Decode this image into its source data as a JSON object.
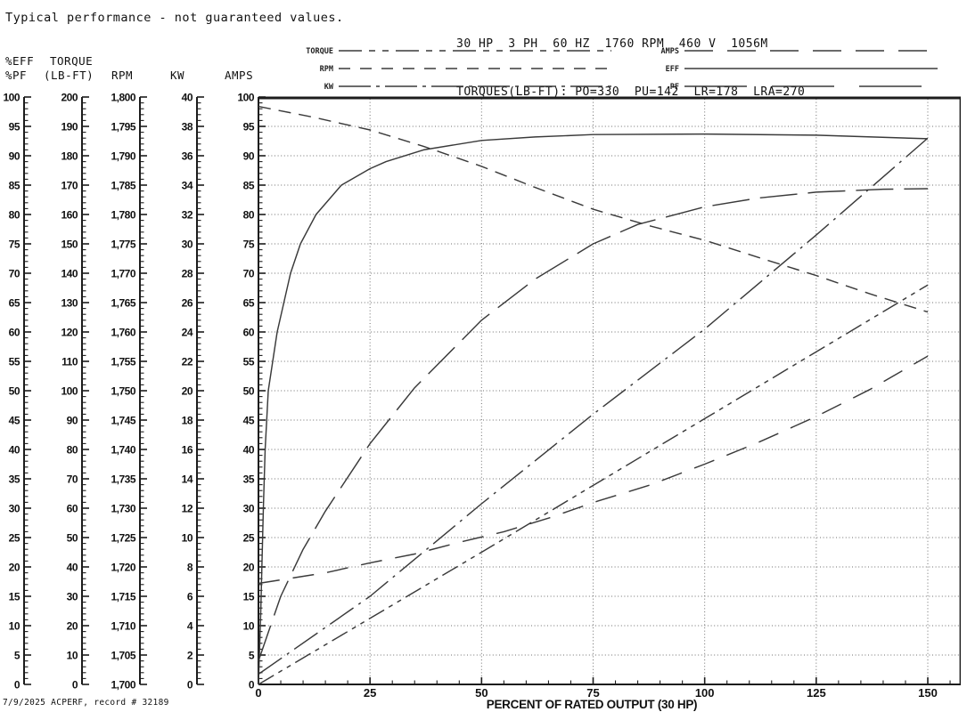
{
  "note": "Typical performance - not guaranteed values.",
  "header": {
    "line1": "30 HP  3 PH  60 HZ  1760 RPM  460 V  1056M",
    "line2": "TORQUES(LB-FT): PO=330  PU=142  LR=178  LRA=270"
  },
  "footer": "7/9/2025 ACPERF, record # 32189",
  "legend": {
    "left": [
      {
        "label": "TORQUE",
        "dash": "26 8 7 8 7 8"
      },
      {
        "label": "RPM",
        "dash": "13 11"
      },
      {
        "label": "KW",
        "dash": "36 6 4 6"
      }
    ],
    "right": [
      {
        "label": "AMPS",
        "dash": "32 16"
      },
      {
        "label": "EFF",
        "dash": ""
      },
      {
        "label": "PF",
        "dash": "70 28"
      }
    ]
  },
  "axes": {
    "y_axes": [
      {
        "id": "eff_pf",
        "header1": "%EFF",
        "header2": "%PF",
        "min": 0,
        "max": 100,
        "tick_labels": [
          "100",
          "95",
          "90",
          "85",
          "80",
          "75",
          "70",
          "65",
          "60",
          "55",
          "50",
          "45",
          "40",
          "35",
          "30",
          "25",
          "20",
          "15",
          "10",
          "5",
          "0"
        ]
      },
      {
        "id": "torque",
        "header1": "TORQUE",
        "header2": "(LB-FT)",
        "min": 0,
        "max": 200,
        "tick_labels": [
          "200",
          "190",
          "180",
          "170",
          "160",
          "150",
          "140",
          "130",
          "120",
          "110",
          "100",
          "90",
          "80",
          "70",
          "60",
          "50",
          "40",
          "30",
          "20",
          "10",
          "0"
        ]
      },
      {
        "id": "rpm",
        "header1": "",
        "header2": "RPM",
        "min": 1700,
        "max": 1800,
        "tick_labels": [
          "1,800",
          "1,795",
          "1,790",
          "1,785",
          "1,780",
          "1,775",
          "1,770",
          "1,765",
          "1,760",
          "1,755",
          "1,750",
          "1,745",
          "1,740",
          "1,735",
          "1,730",
          "1,725",
          "1,720",
          "1,715",
          "1,710",
          "1,705",
          "1,700"
        ]
      },
      {
        "id": "kw",
        "header1": "",
        "header2": "KW",
        "min": 0,
        "max": 40,
        "tick_labels": [
          "40",
          "38",
          "36",
          "34",
          "32",
          "30",
          "28",
          "26",
          "24",
          "22",
          "20",
          "18",
          "16",
          "14",
          "12",
          "10",
          "8",
          "6",
          "4",
          "2",
          "0"
        ]
      },
      {
        "id": "amps",
        "header1": "",
        "header2": "AMPS",
        "min": 0,
        "max": 100,
        "tick_labels": [
          "100",
          "95",
          "90",
          "85",
          "80",
          "75",
          "70",
          "65",
          "60",
          "55",
          "50",
          "45",
          "40",
          "35",
          "30",
          "25",
          "20",
          "15",
          "10",
          "5",
          "0"
        ]
      }
    ],
    "x_axis": {
      "label": "PERCENT OF RATED OUTPUT (30 HP)",
      "min": 0,
      "max": 157.5,
      "minor_step": 5,
      "major_ticks": [
        0,
        25,
        50,
        75,
        100,
        125,
        150
      ],
      "tick_labels": [
        "0",
        "25",
        "50",
        "75",
        "100",
        "125",
        "150"
      ]
    }
  },
  "chart_data": {
    "type": "line",
    "title": "Typical performance - not guaranteed values.",
    "xlabel": "PERCENT OF RATED OUTPUT (30 HP)",
    "x_range": [
      0,
      150
    ],
    "grid": "dotted, horizontal every 5% of scale, vertical every 25%",
    "series": [
      {
        "name": "EFF",
        "axis": "eff_pf",
        "unit": "%",
        "dash": "",
        "points": [
          [
            0,
            0
          ],
          [
            0.5,
            12
          ],
          [
            1.1,
            30
          ],
          [
            1.5,
            40
          ],
          [
            2.2,
            50
          ],
          [
            4.2,
            60
          ],
          [
            7.2,
            70
          ],
          [
            9.4,
            75
          ],
          [
            12.9,
            80
          ],
          [
            18.6,
            85
          ],
          [
            25,
            87.8
          ],
          [
            28.6,
            89
          ],
          [
            37,
            91
          ],
          [
            50,
            92.6
          ],
          [
            62,
            93.2
          ],
          [
            75,
            93.6
          ],
          [
            100,
            93.7
          ],
          [
            125,
            93.5
          ],
          [
            150,
            92.9
          ]
        ]
      },
      {
        "name": "PF",
        "axis": "eff_pf",
        "unit": "%",
        "dash": "42 12",
        "points": [
          [
            0,
            4
          ],
          [
            5,
            15
          ],
          [
            10,
            23
          ],
          [
            15,
            29.5
          ],
          [
            25,
            41
          ],
          [
            35,
            50.5
          ],
          [
            50,
            62
          ],
          [
            62,
            69
          ],
          [
            75,
            75
          ],
          [
            85,
            78.3
          ],
          [
            100,
            81.3
          ],
          [
            112,
            82.8
          ],
          [
            125,
            83.8
          ],
          [
            140,
            84.3
          ],
          [
            150,
            84.4
          ]
        ]
      },
      {
        "name": "RPM",
        "axis": "rpm",
        "unit": "RPM",
        "dash": "14 9",
        "points": [
          [
            0,
            1798.4
          ],
          [
            12,
            1796.6
          ],
          [
            25,
            1794.4
          ],
          [
            37,
            1791.6
          ],
          [
            50,
            1788.2
          ],
          [
            62,
            1784.6
          ],
          [
            75,
            1780.9
          ],
          [
            88,
            1778.0
          ],
          [
            100,
            1775.6
          ],
          [
            112,
            1772.7
          ],
          [
            125,
            1769.6
          ],
          [
            137,
            1766.5
          ],
          [
            150,
            1763.4
          ]
        ]
      },
      {
        "name": "KW",
        "axis": "kw",
        "unit": "KW",
        "dash": "32 7 3 7",
        "points": [
          [
            0,
            0.7
          ],
          [
            25,
            6.0
          ],
          [
            50,
            12.3
          ],
          [
            75,
            18.4
          ],
          [
            100,
            24.2
          ],
          [
            125,
            30.6
          ],
          [
            150,
            37.2
          ]
        ]
      },
      {
        "name": "TORQUE",
        "axis": "torque",
        "unit": "LB-FT",
        "dash": "20 6 5 6 5 6",
        "points": [
          [
            0,
            0
          ],
          [
            50,
            45
          ],
          [
            100,
            90.5
          ],
          [
            150,
            136
          ]
        ]
      },
      {
        "name": "AMPS",
        "axis": "amps",
        "unit": "A",
        "dash": "24 15",
        "points": [
          [
            0,
            17.2
          ],
          [
            15,
            19.0
          ],
          [
            25,
            20.7
          ],
          [
            35,
            22.2
          ],
          [
            45,
            24.2
          ],
          [
            55,
            26.0
          ],
          [
            65,
            28.3
          ],
          [
            76,
            31.2
          ],
          [
            88,
            34.0
          ],
          [
            100,
            37.5
          ],
          [
            112,
            41.2
          ],
          [
            125,
            45.6
          ],
          [
            137,
            50.2
          ],
          [
            150,
            55.9
          ]
        ]
      }
    ]
  }
}
